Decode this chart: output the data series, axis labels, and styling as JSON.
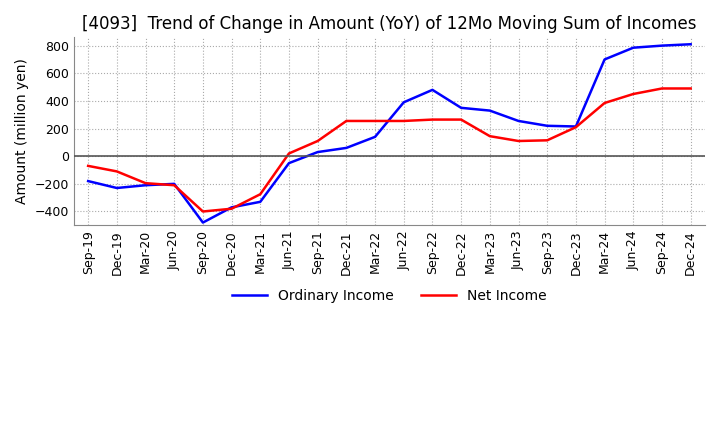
{
  "title": "[4093]  Trend of Change in Amount (YoY) of 12Mo Moving Sum of Incomes",
  "ylabel": "Amount (million yen)",
  "ylim": [
    -500,
    860
  ],
  "yticks": [
    -400,
    -200,
    0,
    200,
    400,
    600,
    800
  ],
  "x_labels": [
    "Sep-19",
    "Dec-19",
    "Mar-20",
    "Jun-20",
    "Sep-20",
    "Dec-20",
    "Mar-21",
    "Jun-21",
    "Sep-21",
    "Dec-21",
    "Mar-22",
    "Jun-22",
    "Sep-22",
    "Dec-22",
    "Mar-23",
    "Jun-23",
    "Sep-23",
    "Dec-23",
    "Mar-24",
    "Jun-24",
    "Sep-24",
    "Dec-24"
  ],
  "ordinary_income": [
    -180,
    -230,
    -210,
    -200,
    -480,
    -370,
    -330,
    -50,
    30,
    60,
    140,
    390,
    480,
    350,
    330,
    255,
    220,
    215,
    700,
    785,
    800,
    810
  ],
  "net_income": [
    -70,
    -110,
    -195,
    -210,
    -400,
    -380,
    -275,
    20,
    110,
    255,
    255,
    255,
    265,
    265,
    145,
    110,
    115,
    210,
    385,
    450,
    490,
    490
  ],
  "ordinary_color": "#0000ff",
  "net_color": "#ff0000",
  "background_color": "#ffffff",
  "grid_color": "#aaaaaa",
  "zeroline_color": "#555555",
  "title_fontsize": 12,
  "axis_fontsize": 10,
  "tick_fontsize": 9,
  "legend_fontsize": 10
}
